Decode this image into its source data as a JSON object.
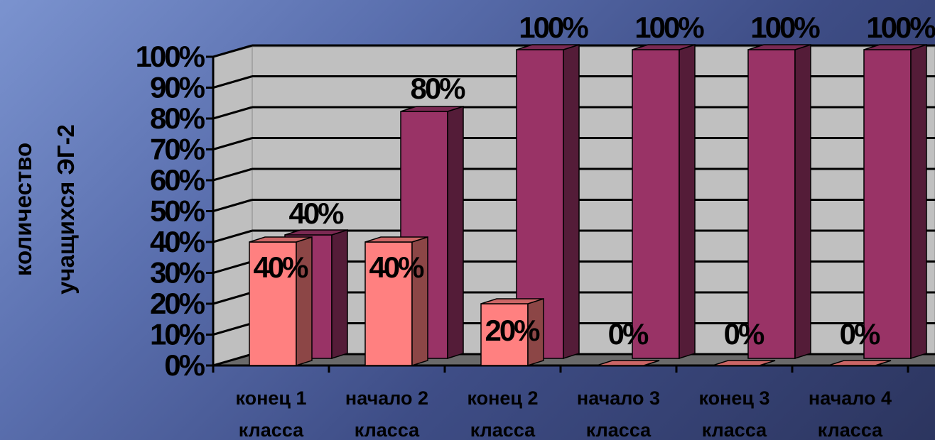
{
  "chart_data": {
    "type": "bar",
    "title": "",
    "xlabel": "",
    "ylabel_lines": [
      "количество",
      "учащихся ЭГ-2"
    ],
    "ylim": [
      0,
      100
    ],
    "yticks": [
      "0%",
      "10%",
      "20%",
      "30%",
      "40%",
      "50%",
      "60%",
      "70%",
      "80%",
      "90%",
      "100%"
    ],
    "grid": true,
    "legend": "none",
    "categories": [
      [
        "конец 1",
        "класса"
      ],
      [
        "начало 2",
        "класса"
      ],
      [
        "конец 2",
        "класса"
      ],
      [
        "начало 3",
        "класса"
      ],
      [
        "конец 3",
        "класса"
      ],
      [
        "начало 4",
        "класса"
      ]
    ],
    "series": [
      {
        "color": "#ff8080",
        "values": [
          40,
          40,
          20,
          0,
          0,
          0
        ],
        "labels": [
          "40%",
          "40%",
          "20%",
          "0%",
          "0%",
          "0%"
        ]
      },
      {
        "color": "#993366",
        "values": [
          40,
          80,
          100,
          100,
          100,
          100
        ],
        "labels": [
          "40%",
          "80%",
          "100%",
          "100%",
          "100%",
          "100%"
        ]
      }
    ]
  }
}
